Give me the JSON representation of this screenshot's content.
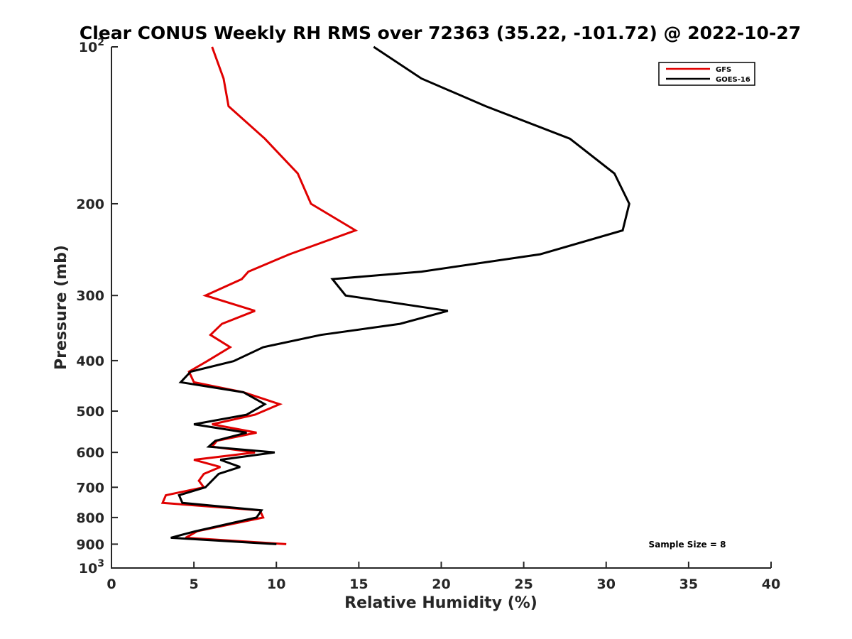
{
  "chart_data": {
    "type": "line",
    "title": "Clear CONUS Weekly RH RMS over 72363 (35.22, -101.72) @ 2022-10-27",
    "xlabel": "Relative Humidity (%)",
    "ylabel": "Pressure (mb)",
    "xlim": [
      0,
      40
    ],
    "ylim": [
      100,
      1000
    ],
    "yscale": "log",
    "y_reversed": true,
    "xticks": [
      {
        "value": 0,
        "label": "0"
      },
      {
        "value": 5,
        "label": "5"
      },
      {
        "value": 10,
        "label": "10"
      },
      {
        "value": 15,
        "label": "15"
      },
      {
        "value": 20,
        "label": "20"
      },
      {
        "value": 25,
        "label": "25"
      },
      {
        "value": 30,
        "label": "30"
      },
      {
        "value": 35,
        "label": "35"
      },
      {
        "value": 40,
        "label": "40"
      }
    ],
    "yticks": [
      {
        "value": 100,
        "base": "10",
        "exp": "2"
      },
      {
        "value": 200,
        "label": "200"
      },
      {
        "value": 300,
        "label": "300"
      },
      {
        "value": 400,
        "label": "400"
      },
      {
        "value": 500,
        "label": "500"
      },
      {
        "value": 600,
        "label": "600"
      },
      {
        "value": 700,
        "label": "700"
      },
      {
        "value": 800,
        "label": "800"
      },
      {
        "value": 900,
        "label": "900"
      },
      {
        "value": 1000,
        "base": "10",
        "exp": "3"
      }
    ],
    "legend_position": "top-right",
    "annotation": "Sample Size = 8",
    "series": [
      {
        "name": "GFS",
        "color": "#e00000",
        "points": [
          [
            6.1,
            100
          ],
          [
            6.8,
            115
          ],
          [
            7.1,
            130
          ],
          [
            9.3,
            150
          ],
          [
            11.3,
            175
          ],
          [
            12.1,
            200
          ],
          [
            14.8,
            225
          ],
          [
            10.8,
            250
          ],
          [
            8.3,
            270
          ],
          [
            7.9,
            279
          ],
          [
            5.7,
            300
          ],
          [
            8.7,
            321
          ],
          [
            6.7,
            340
          ],
          [
            6.0,
            357
          ],
          [
            7.2,
            377
          ],
          [
            5.8,
            401
          ],
          [
            4.7,
            420
          ],
          [
            5.0,
            440
          ],
          [
            8.0,
            460
          ],
          [
            10.2,
            485
          ],
          [
            8.7,
            508
          ],
          [
            6.1,
            530
          ],
          [
            8.8,
            550
          ],
          [
            6.4,
            570
          ],
          [
            6.1,
            585
          ],
          [
            8.7,
            600
          ],
          [
            5.0,
            620
          ],
          [
            6.6,
            640
          ],
          [
            5.6,
            660
          ],
          [
            5.3,
            680
          ],
          [
            5.6,
            700
          ],
          [
            3.3,
            725
          ],
          [
            3.1,
            750
          ],
          [
            9.0,
            775
          ],
          [
            9.2,
            800
          ],
          [
            5.2,
            850
          ],
          [
            4.5,
            875
          ],
          [
            10.6,
            900
          ]
        ]
      },
      {
        "name": "GOES-16",
        "color": "#000000",
        "points": [
          [
            15.9,
            100
          ],
          [
            18.8,
            115
          ],
          [
            22.7,
            130
          ],
          [
            27.8,
            150
          ],
          [
            30.5,
            175
          ],
          [
            31.4,
            200
          ],
          [
            31.0,
            225
          ],
          [
            26.0,
            250
          ],
          [
            18.8,
            270
          ],
          [
            13.4,
            279
          ],
          [
            14.2,
            300
          ],
          [
            20.4,
            321
          ],
          [
            17.5,
            340
          ],
          [
            12.7,
            357
          ],
          [
            9.2,
            377
          ],
          [
            7.4,
            401
          ],
          [
            4.8,
            420
          ],
          [
            4.2,
            440
          ],
          [
            8.0,
            460
          ],
          [
            9.3,
            485
          ],
          [
            8.2,
            508
          ],
          [
            5.0,
            530
          ],
          [
            8.2,
            550
          ],
          [
            6.3,
            570
          ],
          [
            5.9,
            585
          ],
          [
            9.9,
            600
          ],
          [
            6.6,
            620
          ],
          [
            7.8,
            640
          ],
          [
            6.5,
            660
          ],
          [
            5.7,
            700
          ],
          [
            4.1,
            725
          ],
          [
            4.3,
            750
          ],
          [
            9.1,
            775
          ],
          [
            8.8,
            800
          ],
          [
            5.1,
            850
          ],
          [
            3.6,
            875
          ],
          [
            10.0,
            900
          ]
        ]
      }
    ]
  }
}
